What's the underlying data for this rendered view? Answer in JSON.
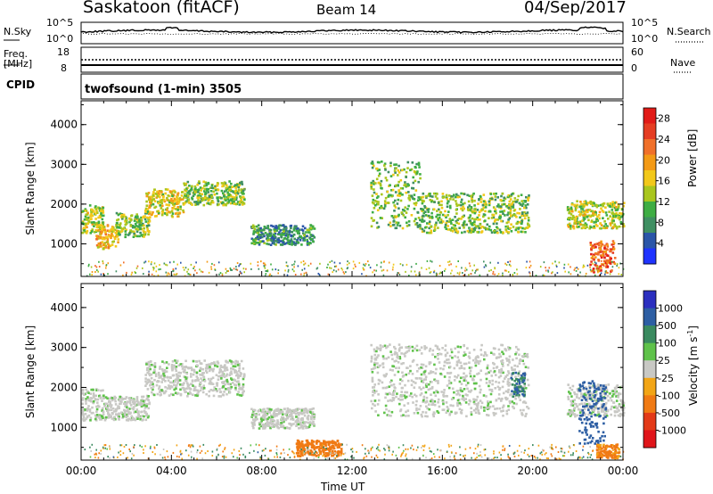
{
  "header": {
    "station": "Saskatoon (fitACF)",
    "beam": "Beam 14",
    "date": "04/Sep/2017"
  },
  "strips": {
    "nsky_label": "N.Sky",
    "nsearch_label": "N.Search",
    "nsky_ticks": [
      "10^5",
      "10^0"
    ],
    "nsearch_ticks": [
      "10^5",
      "10^0"
    ],
    "freq_label": "Freq.",
    "freq_unit": "[MHz]",
    "freq_ticks": [
      "18",
      "8"
    ],
    "nave_label": "Nave",
    "nave_ticks": [
      "60",
      "0"
    ],
    "cpid_label": "CPID",
    "cpid_text": "twofsound (1-min) 3505"
  },
  "chart_data": [
    {
      "type": "heatmap",
      "name": "power",
      "ylabel": "Slant Range [km]",
      "y_ticks": [
        "4000",
        "3000",
        "2000",
        "1000"
      ],
      "y_tick_values": [
        4000,
        3000,
        2000,
        1000
      ],
      "ylim": [
        180,
        4600
      ],
      "x_ticks": [
        "00:00",
        "04:00",
        "08:00",
        "12:00",
        "16:00",
        "20:00",
        "00:00"
      ],
      "xlim_hours": [
        0,
        24
      ],
      "colorbar": {
        "label": "Power [dB]",
        "ticks": [
          "28",
          "24",
          "20",
          "16",
          "12",
          "8",
          "4"
        ],
        "tick_values": [
          28,
          24,
          20,
          16,
          12,
          8,
          4
        ],
        "range": [
          0,
          30
        ],
        "colors": [
          "#1f33ff",
          "#2a55a8",
          "#3f8f62",
          "#3ead44",
          "#a9c61e",
          "#f2c81a",
          "#f39a16",
          "#f0702a",
          "#e53d22",
          "#e11a17"
        ]
      },
      "echo_bands": [
        {
          "t0": 0.0,
          "t1": 1.0,
          "r0": 1300,
          "r1": 2000,
          "level": 14
        },
        {
          "t0": 0.6,
          "t1": 1.6,
          "r0": 900,
          "r1": 1500,
          "level": 18
        },
        {
          "t0": 1.5,
          "t1": 3.0,
          "r0": 1200,
          "r1": 1800,
          "level": 12
        },
        {
          "t0": 2.8,
          "t1": 4.5,
          "r0": 1700,
          "r1": 2400,
          "level": 16
        },
        {
          "t0": 4.5,
          "t1": 7.2,
          "r0": 2000,
          "r1": 2600,
          "level": 12
        },
        {
          "t0": 7.5,
          "t1": 10.3,
          "r0": 1000,
          "r1": 1500,
          "level": 8
        },
        {
          "t0": 12.8,
          "t1": 15.0,
          "r0": 1400,
          "r1": 3100,
          "level": 12
        },
        {
          "t0": 15.0,
          "t1": 19.8,
          "r0": 1300,
          "r1": 2300,
          "level": 12
        },
        {
          "t0": 21.5,
          "t1": 24.0,
          "r0": 1400,
          "r1": 2100,
          "level": 14
        },
        {
          "t0": 22.5,
          "t1": 23.6,
          "r0": 300,
          "r1": 1100,
          "level": 24
        }
      ]
    },
    {
      "type": "heatmap",
      "name": "velocity",
      "ylabel": "Slant Range [km]",
      "y_ticks": [
        "4000",
        "3000",
        "2000",
        "1000"
      ],
      "y_tick_values": [
        4000,
        3000,
        2000,
        1000
      ],
      "ylim": [
        180,
        4600
      ],
      "x_ticks": [
        "00:00",
        "04:00",
        "08:00",
        "12:00",
        "16:00",
        "20:00",
        "00:00"
      ],
      "xlim_hours": [
        0,
        24
      ],
      "xlabel": "Time UT",
      "colorbar": {
        "label": "Velocity [m s^-1]",
        "ticks": [
          "1000",
          "500",
          "100",
          "25",
          "-25",
          "-100",
          "-500",
          "-1000"
        ],
        "colors": [
          "#2b2fbf",
          "#2d5ea3",
          "#3a8a5f",
          "#5fc24a",
          "#c8c8c4",
          "#f2a516",
          "#f07a14",
          "#e33a18",
          "#e0151a"
        ]
      },
      "echo_bands": [
        {
          "t0": 0.0,
          "t1": 1.0,
          "r0": 1200,
          "r1": 2000,
          "level": 0
        },
        {
          "t0": 1.0,
          "t1": 3.0,
          "r0": 1200,
          "r1": 1800,
          "level": 0
        },
        {
          "t0": 2.8,
          "t1": 7.2,
          "r0": 1800,
          "r1": 2700,
          "level": 0
        },
        {
          "t0": 7.5,
          "t1": 10.3,
          "r0": 1000,
          "r1": 1500,
          "level": 0
        },
        {
          "t0": 12.8,
          "t1": 19.8,
          "r0": 1300,
          "r1": 3100,
          "level": 0
        },
        {
          "t0": 21.5,
          "t1": 24.0,
          "r0": 1300,
          "r1": 2100,
          "level": 0
        },
        {
          "t0": 19.0,
          "t1": 19.6,
          "r0": 1800,
          "r1": 2400,
          "level": 100
        },
        {
          "t0": 22.0,
          "t1": 23.2,
          "r0": 600,
          "r1": 2200,
          "level": 300
        },
        {
          "t0": 9.5,
          "t1": 11.5,
          "r0": 300,
          "r1": 700,
          "level": -200
        },
        {
          "t0": 22.8,
          "t1": 23.8,
          "r0": 250,
          "r1": 600,
          "level": -150
        }
      ]
    }
  ]
}
